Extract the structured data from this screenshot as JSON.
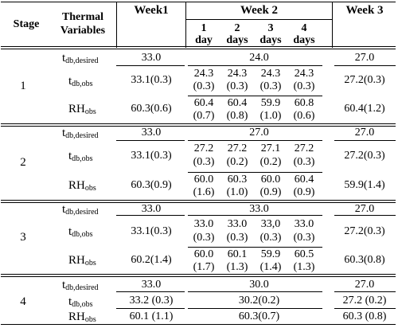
{
  "header": {
    "stage": "Stage",
    "thermal_line1": "Thermal",
    "thermal_line2": "Variables",
    "week1": "Week1",
    "week2": "Week 2",
    "week3": "Week 3",
    "days": [
      {
        "num": "1",
        "unit": "day"
      },
      {
        "num": "2",
        "unit": "days"
      },
      {
        "num": "3",
        "unit": "days"
      },
      {
        "num": "4",
        "unit": "days"
      }
    ]
  },
  "vars": {
    "t": "t",
    "rh": "RH",
    "desired_sub": "db,desired",
    "tobs_sub": "db,obs",
    "rhobs_sub": "obs"
  },
  "stages": [
    {
      "label": "1",
      "desired": {
        "week1": "33.0",
        "week2": "24.0",
        "week3": "27.0"
      },
      "tobs": {
        "week1": "33.1(0.3)",
        "days": [
          [
            "24.3",
            "(0.3)"
          ],
          [
            "24.3",
            "(0.3)"
          ],
          [
            "24.3",
            "(0.3)"
          ],
          [
            "24.3",
            "(0.3)"
          ]
        ],
        "week3": "27.2(0.3)"
      },
      "rh": {
        "week1": "60.3(0.6)",
        "days": [
          [
            "60.4",
            "(0.7)"
          ],
          [
            "60.4",
            "(0.8)"
          ],
          [
            "59.9",
            "(1.0)"
          ],
          [
            "60.8",
            "(0.6)"
          ]
        ],
        "week3": "60.4(1.2)"
      }
    },
    {
      "label": "2",
      "desired": {
        "week1": "33.0",
        "week2": "27.0",
        "week3": "27.0"
      },
      "tobs": {
        "week1": "33.1(0.3)",
        "days": [
          [
            "27.2",
            "(0.3)"
          ],
          [
            "27.2",
            "(0.2)"
          ],
          [
            "27.1",
            "(0.2)"
          ],
          [
            "27.2",
            "(0.3)"
          ]
        ],
        "week3": "27.2(0.3)"
      },
      "rh": {
        "week1": "60.3(0.9)",
        "days": [
          [
            "60.0",
            "(1.6)"
          ],
          [
            "60.3",
            "(1.0)"
          ],
          [
            "60.0",
            "(0.9)"
          ],
          [
            "60.4",
            "(0.9)"
          ]
        ],
        "week3": "59.9(1.4)"
      }
    },
    {
      "label": "3",
      "desired": {
        "week1": "33.0",
        "week2": "33.0",
        "week3": "27.0"
      },
      "tobs": {
        "week1": "33.1(0.3)",
        "days": [
          [
            "33.0",
            "(0.3)"
          ],
          [
            "33.0",
            "(0.3)"
          ],
          [
            "33,0",
            "(0.3)"
          ],
          [
            "33.0",
            "(0.3)"
          ]
        ],
        "week3": "27.2(0.3)"
      },
      "rh": {
        "week1": "60.2(1.4)",
        "days": [
          [
            "60.0",
            "(1.7)"
          ],
          [
            "60.1",
            "(1.3)"
          ],
          [
            "59.9",
            "(1.4)"
          ],
          [
            "60.5",
            "(1.3)"
          ]
        ],
        "week3": "60.3(0.8)"
      }
    },
    {
      "label": "4",
      "desired": {
        "week1": "33.0",
        "week2": "30.0",
        "week3": "27.0"
      },
      "tobs": {
        "week1": "33.2 (0.3)",
        "week2": "30.2(0.2)",
        "week3": "27.2 (0.2)"
      },
      "rh": {
        "week1": "60.1 (1.1)",
        "week2": "60.3(0.7)",
        "week3": "60.3 (0.8)"
      }
    }
  ]
}
